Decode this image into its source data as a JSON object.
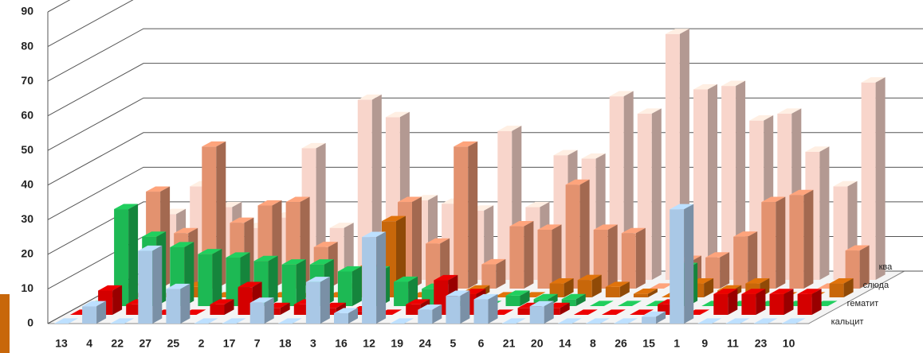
{
  "chart_data": {
    "type": "bar3d",
    "categories": [
      "13",
      "4",
      "22",
      "27",
      "25",
      "2",
      "17",
      "7",
      "18",
      "3",
      "16",
      "12",
      "19",
      "24",
      "5",
      "6",
      "21",
      "20",
      "14",
      "8",
      "26",
      "15",
      "1",
      "9",
      "11",
      "23",
      "10"
    ],
    "series": [
      {
        "name": "кальцит",
        "color": "#a9c8e6",
        "values": [
          0,
          5,
          0,
          21,
          10,
          0,
          0,
          6,
          0,
          12,
          3,
          25,
          0,
          4,
          8,
          7,
          0,
          5,
          0,
          0,
          0,
          2,
          33,
          0,
          0,
          0,
          0
        ]
      },
      {
        "name": "гематит",
        "color": "#d40000",
        "values": [
          0,
          7,
          3,
          0,
          0,
          3,
          8,
          2,
          3,
          2,
          1,
          0,
          3,
          10,
          6,
          0,
          2,
          2,
          0,
          0,
          0,
          3,
          0,
          6,
          6,
          6,
          6
        ]
      },
      {
        "name": "слюда",
        "color": "#1db954",
        "values": [
          0,
          28,
          20,
          17,
          15,
          14,
          13,
          12,
          12,
          10,
          10,
          7,
          5,
          0,
          0,
          3,
          2,
          2,
          0,
          0,
          0,
          11,
          0,
          0,
          0,
          0,
          0
        ]
      },
      {
        "name": "ква",
        "color": "#c8670a",
        "values": [
          0,
          0,
          0,
          3,
          0,
          0,
          0,
          0,
          0,
          8,
          22,
          0,
          0,
          2,
          0,
          0,
          4,
          5,
          3,
          1,
          0,
          4,
          2,
          4,
          0,
          0,
          4
        ]
      },
      {
        "name": null,
        "color": "#e3926f",
        "values": [
          0,
          28,
          16,
          41,
          19,
          24,
          25,
          12,
          0,
          15,
          25,
          13,
          41,
          7,
          18,
          17,
          30,
          17,
          16,
          0,
          8,
          9,
          15,
          25,
          27,
          0,
          11
        ]
      },
      {
        "name": null,
        "color": "#f8d5cb",
        "values": [
          0,
          19,
          27,
          21,
          15,
          18,
          38,
          15,
          52,
          47,
          23,
          22,
          20,
          43,
          21,
          36,
          35,
          53,
          48,
          71,
          55,
          56,
          46,
          48,
          37,
          27,
          57
        ]
      }
    ],
    "ylim": [
      0,
      90
    ],
    "yticks": [
      0,
      10,
      20,
      30,
      40,
      50,
      60,
      70,
      80,
      90
    ],
    "grid": true
  }
}
